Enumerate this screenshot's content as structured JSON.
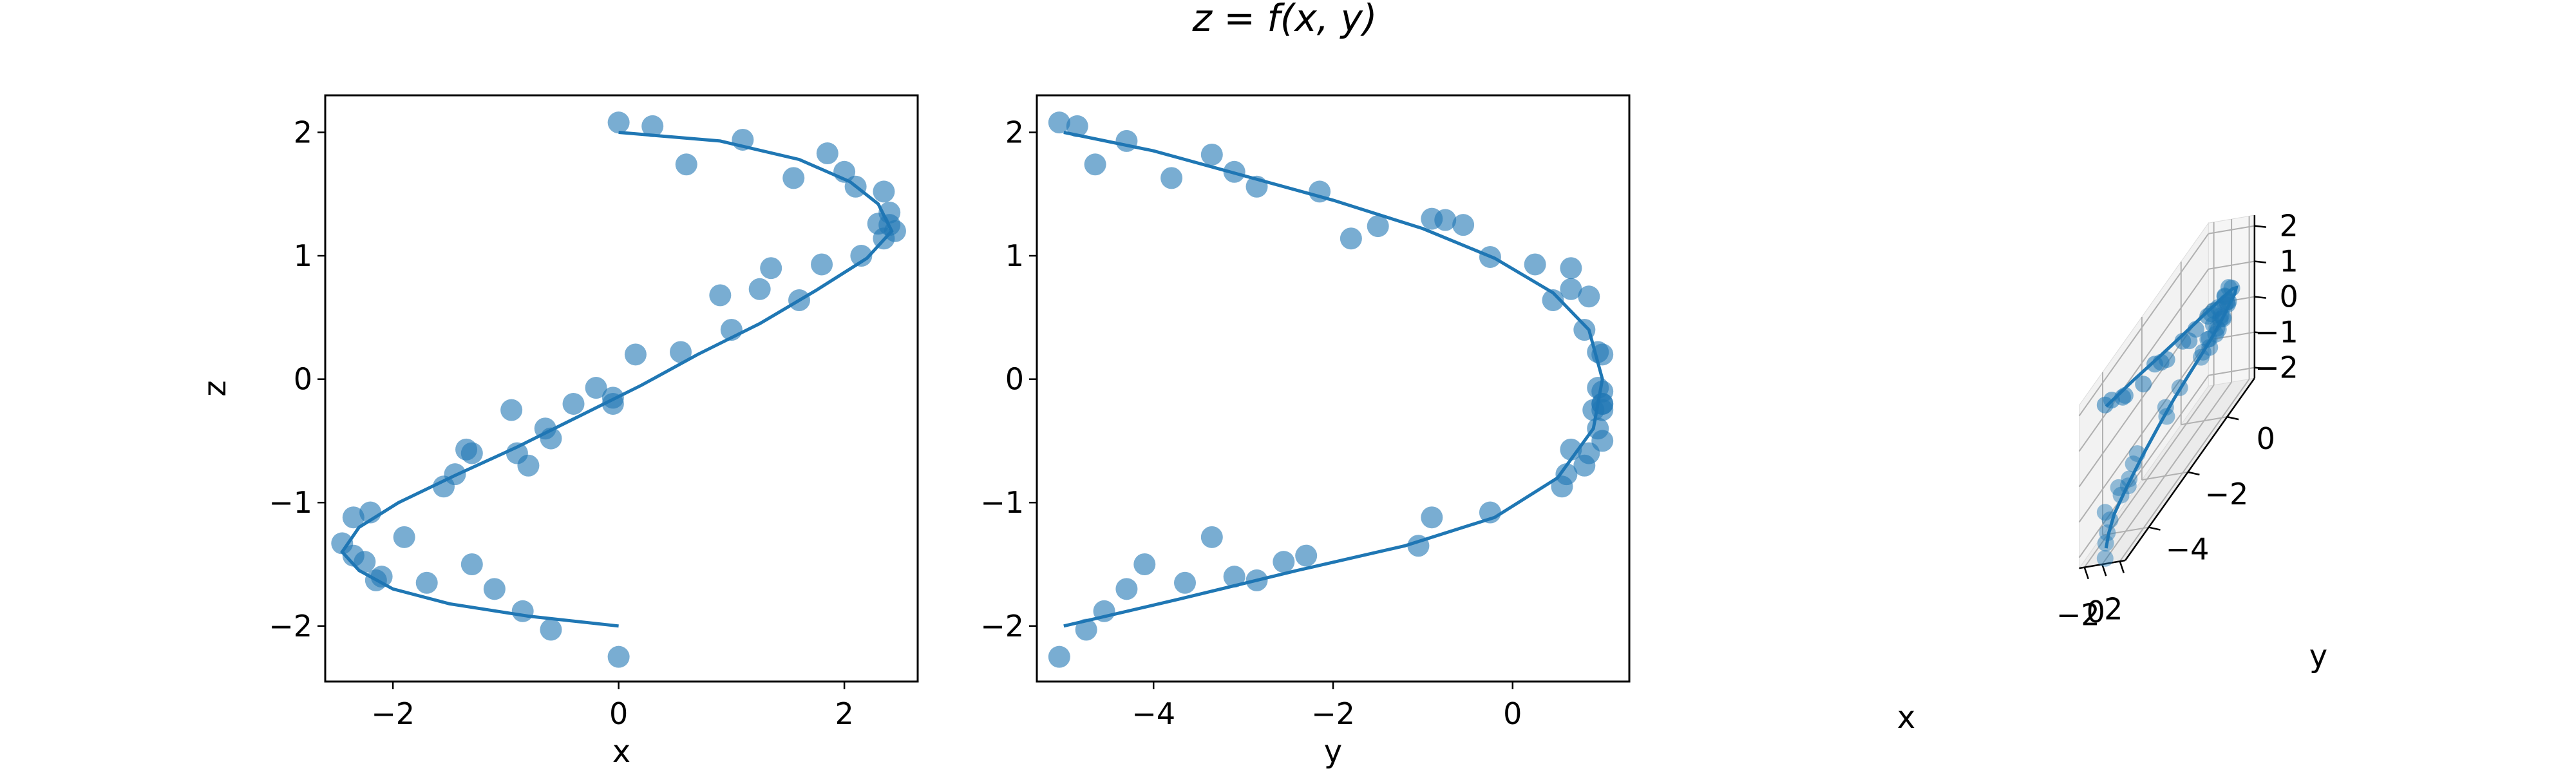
{
  "figure": {
    "title": "z = f(x, y)"
  },
  "chart_data": [
    {
      "type": "scatter",
      "panel": "x-z projection",
      "xlabel": "x",
      "ylabel": "z",
      "xlim": [
        -2.6,
        2.65
      ],
      "ylim": [
        -2.45,
        2.3
      ],
      "xticks": [
        -2,
        0,
        2
      ],
      "yticks": [
        -2,
        -1,
        0,
        1,
        2
      ],
      "grid": false,
      "points": [
        [
          0.0,
          2.08
        ],
        [
          0.3,
          2.05
        ],
        [
          0.6,
          1.74
        ],
        [
          1.1,
          1.94
        ],
        [
          1.55,
          1.63
        ],
        [
          1.85,
          1.83
        ],
        [
          2.0,
          1.68
        ],
        [
          2.1,
          1.56
        ],
        [
          2.35,
          1.52
        ],
        [
          2.4,
          1.35
        ],
        [
          2.3,
          1.26
        ],
        [
          2.4,
          1.25
        ],
        [
          2.45,
          1.2
        ],
        [
          2.35,
          1.14
        ],
        [
          2.15,
          1.0
        ],
        [
          1.8,
          0.93
        ],
        [
          1.35,
          0.9
        ],
        [
          1.25,
          0.73
        ],
        [
          1.6,
          0.64
        ],
        [
          0.9,
          0.68
        ],
        [
          1.0,
          0.4
        ],
        [
          0.55,
          0.22
        ],
        [
          0.15,
          0.2
        ],
        [
          -0.2,
          -0.07
        ],
        [
          -0.4,
          -0.2
        ],
        [
          -0.05,
          -0.2
        ],
        [
          -0.05,
          -0.15
        ],
        [
          -0.6,
          -0.48
        ],
        [
          -0.95,
          -0.25
        ],
        [
          -0.65,
          -0.4
        ],
        [
          -0.9,
          -0.6
        ],
        [
          -0.8,
          -0.7
        ],
        [
          -1.3,
          -0.6
        ],
        [
          -1.35,
          -0.57
        ],
        [
          -1.45,
          -0.77
        ],
        [
          -1.55,
          -0.87
        ],
        [
          -2.2,
          -1.08
        ],
        [
          -2.35,
          -1.12
        ],
        [
          -1.9,
          -1.28
        ],
        [
          -2.45,
          -1.33
        ],
        [
          -2.35,
          -1.43
        ],
        [
          -2.25,
          -1.48
        ],
        [
          -2.1,
          -1.6
        ],
        [
          -2.15,
          -1.63
        ],
        [
          -1.7,
          -1.65
        ],
        [
          -1.3,
          -1.5
        ],
        [
          -1.1,
          -1.7
        ],
        [
          -0.85,
          -1.88
        ],
        [
          -0.6,
          -2.03
        ],
        [
          0.0,
          -2.25
        ]
      ],
      "curve": [
        [
          0.0,
          2.0
        ],
        [
          0.9,
          1.93
        ],
        [
          1.6,
          1.78
        ],
        [
          2.05,
          1.6
        ],
        [
          2.3,
          1.42
        ],
        [
          2.42,
          1.2
        ],
        [
          2.2,
          0.98
        ],
        [
          1.75,
          0.72
        ],
        [
          1.25,
          0.45
        ],
        [
          0.7,
          0.2
        ],
        [
          0.2,
          -0.05
        ],
        [
          -0.35,
          -0.3
        ],
        [
          -0.9,
          -0.55
        ],
        [
          -1.45,
          -0.78
        ],
        [
          -1.95,
          -1.0
        ],
        [
          -2.3,
          -1.2
        ],
        [
          -2.45,
          -1.4
        ],
        [
          -2.3,
          -1.55
        ],
        [
          -2.0,
          -1.7
        ],
        [
          -1.5,
          -1.82
        ],
        [
          -0.8,
          -1.92
        ],
        [
          0.0,
          -2.0
        ]
      ]
    },
    {
      "type": "scatter",
      "panel": "y-z projection",
      "xlabel": "y",
      "ylabel": "",
      "xlim": [
        -5.3,
        1.3
      ],
      "ylim": [
        -2.45,
        2.3
      ],
      "xticks": [
        -4,
        -2,
        0
      ],
      "yticks": [
        -2,
        -1,
        0,
        1,
        2
      ],
      "grid": false,
      "points": [
        [
          -5.05,
          2.08
        ],
        [
          -4.85,
          2.05
        ],
        [
          -4.3,
          1.93
        ],
        [
          -4.65,
          1.74
        ],
        [
          -3.8,
          1.63
        ],
        [
          -3.35,
          1.82
        ],
        [
          -3.1,
          1.68
        ],
        [
          -2.85,
          1.56
        ],
        [
          -2.15,
          1.52
        ],
        [
          -1.5,
          1.24
        ],
        [
          -1.8,
          1.14
        ],
        [
          -0.9,
          1.3
        ],
        [
          -0.75,
          1.29
        ],
        [
          -0.55,
          1.25
        ],
        [
          -0.25,
          0.99
        ],
        [
          0.25,
          0.93
        ],
        [
          0.65,
          0.9
        ],
        [
          0.85,
          0.67
        ],
        [
          0.45,
          0.64
        ],
        [
          0.65,
          0.73
        ],
        [
          0.8,
          0.4
        ],
        [
          0.95,
          0.22
        ],
        [
          1.0,
          0.2
        ],
        [
          0.95,
          -0.07
        ],
        [
          1.0,
          -0.1
        ],
        [
          1.0,
          -0.2
        ],
        [
          1.0,
          -0.2
        ],
        [
          1.0,
          -0.25
        ],
        [
          0.9,
          -0.25
        ],
        [
          0.95,
          -0.4
        ],
        [
          1.0,
          -0.5
        ],
        [
          0.65,
          -0.57
        ],
        [
          0.85,
          -0.6
        ],
        [
          0.8,
          -0.7
        ],
        [
          0.6,
          -0.77
        ],
        [
          0.55,
          -0.87
        ],
        [
          -0.25,
          -1.08
        ],
        [
          -0.9,
          -1.12
        ],
        [
          -1.05,
          -1.35
        ],
        [
          -2.3,
          -1.43
        ],
        [
          -2.55,
          -1.48
        ],
        [
          -3.35,
          -1.28
        ],
        [
          -4.1,
          -1.5
        ],
        [
          -2.85,
          -1.63
        ],
        [
          -3.1,
          -1.6
        ],
        [
          -3.65,
          -1.65
        ],
        [
          -4.3,
          -1.7
        ],
        [
          -4.55,
          -1.88
        ],
        [
          -4.75,
          -2.03
        ],
        [
          -5.05,
          -2.25
        ]
      ],
      "curve": [
        [
          -5.0,
          2.0
        ],
        [
          -4.0,
          1.85
        ],
        [
          -3.0,
          1.65
        ],
        [
          -2.0,
          1.45
        ],
        [
          -1.0,
          1.22
        ],
        [
          -0.2,
          0.98
        ],
        [
          0.45,
          0.7
        ],
        [
          0.85,
          0.4
        ],
        [
          1.0,
          0.0
        ],
        [
          0.9,
          -0.4
        ],
        [
          0.5,
          -0.8
        ],
        [
          -0.2,
          -1.12
        ],
        [
          -1.2,
          -1.35
        ],
        [
          -2.4,
          -1.55
        ],
        [
          -3.7,
          -1.78
        ],
        [
          -5.0,
          -2.0
        ]
      ]
    },
    {
      "type": "scatter",
      "panel": "3D view",
      "xlabel": "x",
      "ylabel": "y",
      "zlabel": "",
      "xticks": [
        -2,
        0,
        2
      ],
      "yticks": [
        -4,
        -2,
        0
      ],
      "zticks": [
        -2,
        -1,
        0,
        1,
        2
      ],
      "grid": true,
      "curve3d": [
        [
          0.0,
          -5.0,
          2.0
        ],
        [
          0.9,
          -4.0,
          1.93
        ],
        [
          1.6,
          -3.0,
          1.78
        ],
        [
          2.05,
          -2.0,
          1.6
        ],
        [
          2.3,
          -1.1,
          1.42
        ],
        [
          2.42,
          -0.2,
          1.2
        ],
        [
          2.2,
          0.45,
          0.98
        ],
        [
          1.75,
          0.85,
          0.72
        ],
        [
          1.25,
          1.0,
          0.45
        ],
        [
          0.7,
          0.98,
          0.2
        ],
        [
          0.2,
          0.95,
          -0.05
        ],
        [
          -0.35,
          0.9,
          -0.3
        ],
        [
          -0.9,
          0.75,
          -0.55
        ],
        [
          -1.45,
          0.5,
          -0.78
        ],
        [
          -1.95,
          0.1,
          -1.0
        ],
        [
          -2.3,
          -0.5,
          -1.2
        ],
        [
          -2.45,
          -1.2,
          -1.4
        ],
        [
          -2.3,
          -2.1,
          -1.55
        ],
        [
          -2.0,
          -3.0,
          -1.7
        ],
        [
          -1.5,
          -3.9,
          -1.82
        ],
        [
          -0.8,
          -4.5,
          -1.92
        ],
        [
          0.0,
          -5.0,
          -2.0
        ]
      ]
    }
  ],
  "colors": {
    "series": "#1f77b4",
    "pane": "#f2f2f2",
    "grid": "#b0b0b0"
  }
}
